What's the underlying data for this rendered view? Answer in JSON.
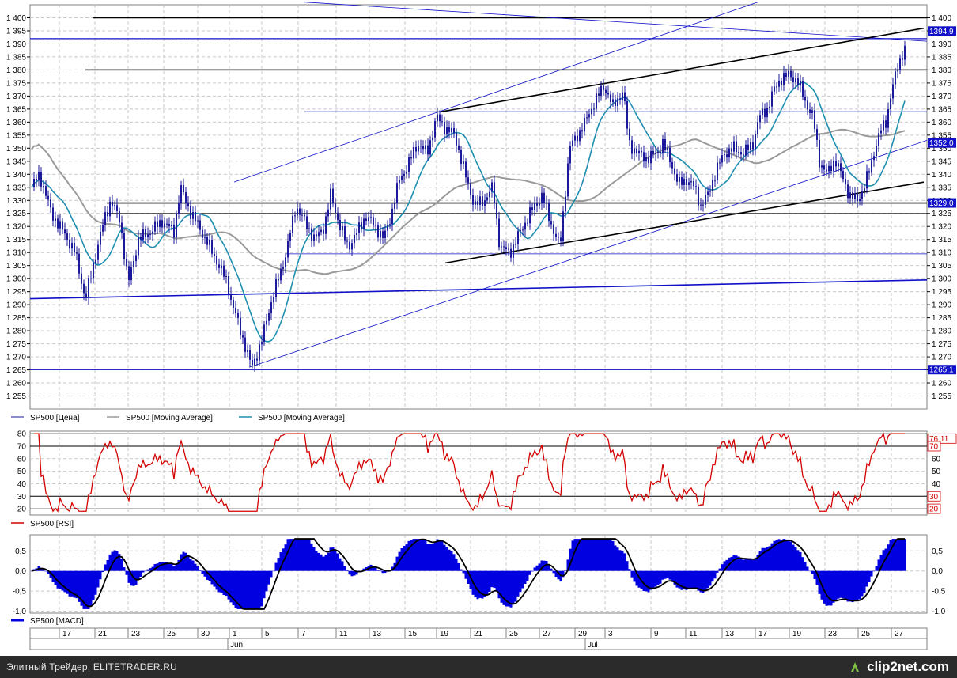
{
  "chart_data": [
    {
      "type": "candlestick",
      "series": [
        {
          "name": "SP500 [Цена]"
        },
        {
          "name": "SP500 [Moving Average]"
        },
        {
          "name": "SP500 [Moving Average]"
        }
      ],
      "ylim": [
        1250,
        1405
      ],
      "y_ticks": [
        "1 400",
        "1 395",
        "1 390",
        "1 385",
        "1 380",
        "1 375",
        "1 370",
        "1 365",
        "1 360",
        "1 355",
        "1 350",
        "1 345",
        "1 340",
        "1 335",
        "1 330",
        "1 325",
        "1 320",
        "1 315",
        "1 310",
        "1 305",
        "1 300",
        "1 295",
        "1 290",
        "1 285",
        "1 280",
        "1 275",
        "1 270",
        "1 265",
        "1 260",
        "1 255"
      ],
      "price_labels": [
        "1394,9",
        "1352,0",
        "1329,0",
        "1265,1"
      ],
      "grid": true,
      "legend_position": "bottom-left",
      "colors": {
        "price": "#1a1a9a",
        "ma_slow": "#9a9a9a",
        "ma_fast": "#1f8fb0",
        "level": "#1010c8",
        "trend": "#000000"
      }
    },
    {
      "type": "line",
      "series": [
        {
          "name": "SP500 [RSI]"
        }
      ],
      "ylim": [
        15,
        82
      ],
      "y_ticks": [
        "80",
        "70",
        "60",
        "50",
        "40",
        "30",
        "20"
      ],
      "level_labels": [
        "76,11",
        "70",
        "30",
        "20"
      ],
      "grid": true,
      "legend_position": "bottom-left",
      "colors": {
        "rsi": "#d40000"
      }
    },
    {
      "type": "histogram",
      "series": [
        {
          "name": "SP500 [MACD]"
        }
      ],
      "ylim": [
        -1.05,
        0.9
      ],
      "y_ticks": [
        "0,5",
        "0,0",
        "-0,5",
        "-1,0"
      ],
      "grid": true,
      "legend_position": "bottom-left",
      "colors": {
        "macd": "#0000e0",
        "signal": "#000000"
      }
    }
  ],
  "x_axis": {
    "day_labels": [
      "17",
      "21",
      "23",
      "25",
      "30",
      "1",
      "5",
      "7",
      "11",
      "13",
      "15",
      "19",
      "21",
      "25",
      "27",
      "29",
      "3",
      "9",
      "11",
      "13",
      "17",
      "19",
      "23",
      "25",
      "27"
    ],
    "month_labels": [
      "Jun",
      "Jul"
    ]
  },
  "footer": {
    "caption": "Элитный Трейдер, ELITETRADER.RU",
    "logo": "clip2net.com"
  }
}
